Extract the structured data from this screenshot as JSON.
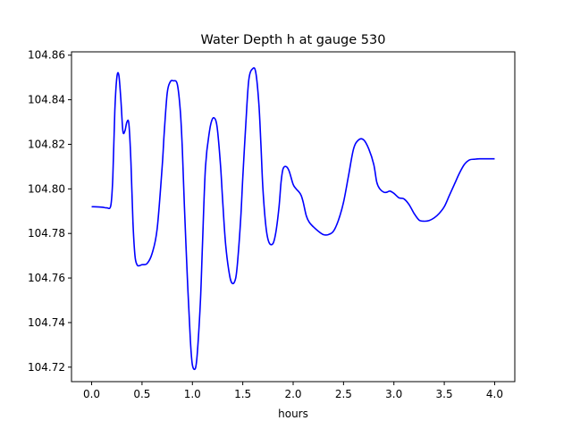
{
  "chart_data": {
    "type": "line",
    "title": "Water Depth h at gauge 530",
    "xlabel": "hours",
    "ylabel": "",
    "xlim": [
      -0.2,
      4.2
    ],
    "ylim": [
      104.7135,
      104.8615
    ],
    "xticks": [
      "0.0",
      "0.5",
      "1.0",
      "1.5",
      "2.0",
      "2.5",
      "3.0",
      "3.5",
      "4.0"
    ],
    "yticks": [
      "104.72",
      "104.74",
      "104.76",
      "104.78",
      "104.80",
      "104.82",
      "104.84",
      "104.86"
    ],
    "grid": false,
    "series": [
      {
        "color": "#0000ff",
        "x": [
          0.0,
          0.1,
          0.15,
          0.19,
          0.21,
          0.23,
          0.25,
          0.27,
          0.29,
          0.31,
          0.33,
          0.35,
          0.37,
          0.39,
          0.41,
          0.43,
          0.45,
          0.47,
          0.5,
          0.55,
          0.6,
          0.65,
          0.7,
          0.72,
          0.75,
          0.78,
          0.81,
          0.85,
          0.88,
          0.9,
          0.92,
          0.95,
          0.98,
          1.0,
          1.03,
          1.05,
          1.08,
          1.1,
          1.13,
          1.17,
          1.2,
          1.23,
          1.25,
          1.28,
          1.3,
          1.33,
          1.37,
          1.4,
          1.43,
          1.45,
          1.48,
          1.5,
          1.53,
          1.56,
          1.6,
          1.63,
          1.66,
          1.68,
          1.7,
          1.73,
          1.76,
          1.8,
          1.83,
          1.86,
          1.88,
          1.9,
          1.93,
          1.96,
          2.0,
          2.03,
          2.06,
          2.08,
          2.1,
          2.13,
          2.16,
          2.2,
          2.25,
          2.3,
          2.35,
          2.4,
          2.45,
          2.5,
          2.55,
          2.6,
          2.65,
          2.7,
          2.75,
          2.8,
          2.83,
          2.86,
          2.9,
          2.93,
          2.96,
          3.0,
          3.05,
          3.1,
          3.15,
          3.2,
          3.25,
          3.3,
          3.35,
          3.4,
          3.45,
          3.5,
          3.55,
          3.6,
          3.65,
          3.7,
          3.75,
          3.8,
          3.85,
          3.9,
          3.95,
          3.98,
          4.0
        ],
        "y": [
          104.792,
          104.7918,
          104.7915,
          104.7925,
          104.805,
          104.835,
          104.85,
          104.851,
          104.84,
          104.826,
          104.826,
          104.83,
          104.829,
          104.812,
          104.785,
          104.77,
          104.766,
          104.7655,
          104.766,
          104.7665,
          104.771,
          104.782,
          104.81,
          104.825,
          104.843,
          104.848,
          104.8485,
          104.847,
          104.835,
          104.818,
          104.793,
          104.76,
          104.732,
          104.721,
          104.7195,
          104.727,
          104.75,
          104.775,
          104.81,
          104.826,
          104.8315,
          104.831,
          104.826,
          104.81,
          104.795,
          104.775,
          104.761,
          104.7575,
          104.76,
          104.768,
          104.787,
          104.805,
          104.829,
          104.849,
          104.854,
          104.852,
          104.838,
          104.82,
          104.8,
          104.783,
          104.776,
          104.7755,
          104.781,
          104.792,
          104.803,
          104.809,
          104.81,
          104.808,
          104.802,
          104.8,
          104.7985,
          104.797,
          104.794,
          104.788,
          104.785,
          104.783,
          104.781,
          104.7795,
          104.7795,
          104.781,
          104.786,
          104.794,
          104.806,
          104.818,
          104.822,
          104.822,
          104.818,
          104.811,
          104.803,
          104.8,
          104.7985,
          104.7985,
          104.799,
          104.798,
          104.796,
          104.7955,
          104.793,
          104.789,
          104.786,
          104.7855,
          104.7858,
          104.787,
          104.789,
          104.792,
          104.797,
          104.802,
          104.807,
          104.811,
          104.813,
          104.8133,
          104.8135,
          104.8135,
          104.8135,
          104.8135,
          104.8135
        ]
      }
    ]
  }
}
